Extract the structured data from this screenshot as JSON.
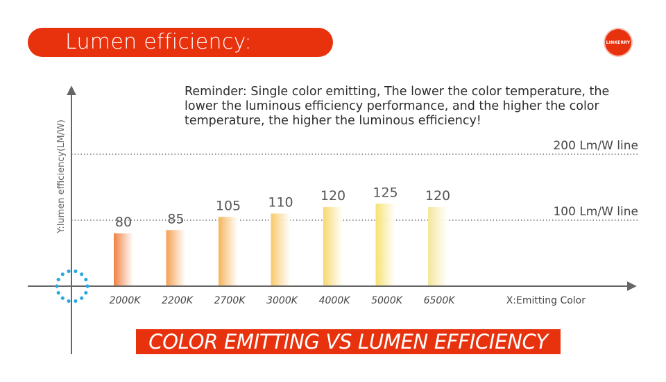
{
  "header": {
    "title": "Lumen efficiency:",
    "logo_text": "LINKERRY"
  },
  "reminder": "Reminder: Single color emitting, The lower the color temperature, the lower the luminous efficiency performance, and the higher the color temperature, the higher the luminous efficiency!",
  "banner": "COLOR EMITTING VS LUMEN EFFICIENCY",
  "colors": {
    "accent": "#e8320e",
    "origin_dots": "#29a8e0",
    "bar_gradient": [
      "#f08040",
      "#f4a050",
      "#f6b45a",
      "#f8c86a",
      "#f8d870",
      "#f6e270",
      "#f4e69a"
    ]
  },
  "chart_data": {
    "type": "bar",
    "title": "COLOR EMITTING VS LUMEN EFFICIENCY",
    "xlabel": "X:Emitting Color",
    "ylabel": "Y:lumen efficiency(LM/W)",
    "categories": [
      "2000K",
      "2200K",
      "2700K",
      "3000K",
      "4000K",
      "5000K",
      "6500K"
    ],
    "values": [
      80,
      85,
      105,
      110,
      120,
      125,
      120
    ],
    "reference_lines": [
      {
        "value": 100,
        "label": "100 Lm/W line"
      },
      {
        "value": 200,
        "label": "200 Lm/W line"
      }
    ],
    "ylim": [
      0,
      200
    ],
    "grid": false,
    "legend": "none"
  }
}
